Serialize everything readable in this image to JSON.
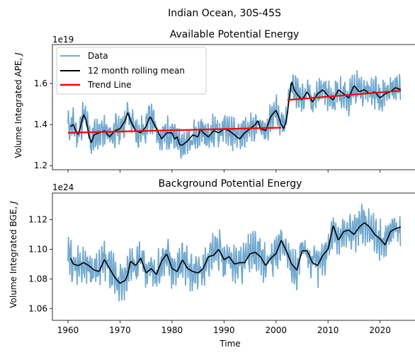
{
  "suptitle": "Indian Ocean, 30S-45S",
  "colors": {
    "data": "#73a9cf",
    "rolling": "#000000",
    "trend": "#ff0000"
  },
  "chart_data": [
    {
      "type": "line",
      "title": "Available Potential Energy",
      "ylabel": "Volume Integrated APE, J",
      "ylabel_text": "Volume Integrated APE, ",
      "ylabel_italic": "J",
      "offset_label": "1e19",
      "xlim": [
        1957,
        2027
      ],
      "ylim": [
        1.18,
        1.79
      ],
      "x_ticks": [
        1960,
        1970,
        1980,
        1990,
        2000,
        2010,
        2020
      ],
      "x_tick_labels_shown": false,
      "y_ticks": [
        1.2,
        1.4,
        1.6
      ],
      "y_tick_labels": [
        "1.2",
        "1.4",
        "1.6"
      ],
      "legend": {
        "position": "top-left",
        "entries": [
          "Data",
          "12 month rolling mean",
          "Trend Line"
        ]
      },
      "trend_segments": [
        {
          "x": [
            1960,
            2001
          ],
          "y": [
            1.36,
            1.385
          ]
        },
        {
          "x": [
            2002.2,
            2024
          ],
          "y": [
            1.52,
            1.565
          ]
        }
      ],
      "rolling_anchors": {
        "x": [
          1960.5,
          1961,
          1961.5,
          1962,
          1962.5,
          1963,
          1963.5,
          1964,
          1964.5,
          1965,
          1966,
          1967,
          1968,
          1969,
          1970,
          1971,
          1971.5,
          1972,
          1973,
          1974,
          1975,
          1975.8,
          1977,
          1978,
          1979,
          1980,
          1980.5,
          1981,
          1981.5,
          1982,
          1983,
          1984,
          1985,
          1985.5,
          1986,
          1987,
          1988,
          1989,
          1990,
          1991,
          1992,
          1993,
          1994,
          1995,
          1996,
          1996.5,
          1997,
          1998,
          1999,
          2000,
          2000.5,
          2001,
          2001.5,
          2002,
          2002.5,
          2003,
          2003.5,
          2004,
          2005,
          2006,
          2007,
          2008,
          2009,
          2010,
          2011,
          2012,
          2013,
          2014,
          2015,
          2016,
          2017,
          2018,
          2019,
          2020,
          2021,
          2022,
          2023,
          2024
        ],
        "y": [
          1.39,
          1.4,
          1.37,
          1.35,
          1.4,
          1.45,
          1.42,
          1.35,
          1.31,
          1.35,
          1.36,
          1.37,
          1.34,
          1.37,
          1.38,
          1.42,
          1.46,
          1.42,
          1.37,
          1.36,
          1.39,
          1.44,
          1.38,
          1.33,
          1.36,
          1.36,
          1.33,
          1.34,
          1.3,
          1.3,
          1.32,
          1.35,
          1.34,
          1.38,
          1.36,
          1.34,
          1.37,
          1.36,
          1.38,
          1.37,
          1.35,
          1.33,
          1.36,
          1.38,
          1.4,
          1.42,
          1.38,
          1.37,
          1.44,
          1.47,
          1.44,
          1.4,
          1.38,
          1.42,
          1.52,
          1.61,
          1.57,
          1.55,
          1.52,
          1.56,
          1.51,
          1.55,
          1.57,
          1.54,
          1.52,
          1.57,
          1.55,
          1.53,
          1.59,
          1.56,
          1.57,
          1.55,
          1.56,
          1.53,
          1.55,
          1.56,
          1.58,
          1.57
        ]
      }
    },
    {
      "type": "line",
      "title": "Background Potential Energy",
      "ylabel": "Volume Integrated BGE, J",
      "ylabel_text": "Volume Integrated BGE, ",
      "ylabel_italic": "J",
      "offset_label": "1e24",
      "xlabel": "Time",
      "xlim": [
        1957,
        2027
      ],
      "ylim": [
        1.052,
        1.138
      ],
      "x_ticks": [
        1960,
        1970,
        1980,
        1990,
        2000,
        2010,
        2020
      ],
      "x_tick_labels": [
        "1960",
        "1970",
        "1980",
        "1990",
        "2000",
        "2010",
        "2020"
      ],
      "y_ticks": [
        1.06,
        1.08,
        1.1,
        1.12
      ],
      "y_tick_labels": [
        "1.06",
        "1.08",
        "1.10",
        "1.12"
      ],
      "rolling_anchors": {
        "x": [
          1960.5,
          1961,
          1962,
          1963,
          1964,
          1965,
          1966,
          1967,
          1968,
          1969,
          1970,
          1971,
          1971.5,
          1972,
          1973,
          1974,
          1975,
          1976,
          1977,
          1978,
          1979,
          1980,
          1981,
          1982,
          1983,
          1984,
          1985,
          1986,
          1987,
          1988,
          1989,
          1990,
          1991,
          1992,
          1993,
          1994,
          1995,
          1996,
          1997,
          1998,
          1999,
          2000,
          2001,
          2002,
          2003,
          2004,
          2005,
          2006,
          2007,
          2008,
          2009,
          2010,
          2011,
          2012,
          2013,
          2014,
          2015,
          2016,
          2017,
          2018,
          2019,
          2020,
          2021,
          2022,
          2023,
          2024
        ],
        "y": [
          1.094,
          1.09,
          1.089,
          1.091,
          1.089,
          1.086,
          1.085,
          1.093,
          1.087,
          1.081,
          1.077,
          1.079,
          1.083,
          1.092,
          1.089,
          1.094,
          1.084,
          1.087,
          1.083,
          1.092,
          1.097,
          1.087,
          1.085,
          1.093,
          1.087,
          1.085,
          1.084,
          1.087,
          1.095,
          1.096,
          1.1,
          1.093,
          1.095,
          1.09,
          1.091,
          1.091,
          1.097,
          1.098,
          1.095,
          1.089,
          1.094,
          1.097,
          1.106,
          1.099,
          1.09,
          1.086,
          1.099,
          1.099,
          1.091,
          1.089,
          1.096,
          1.1,
          1.116,
          1.106,
          1.112,
          1.113,
          1.11,
          1.115,
          1.118,
          1.115,
          1.11,
          1.107,
          1.103,
          1.112,
          1.114,
          1.115
        ]
      }
    }
  ]
}
